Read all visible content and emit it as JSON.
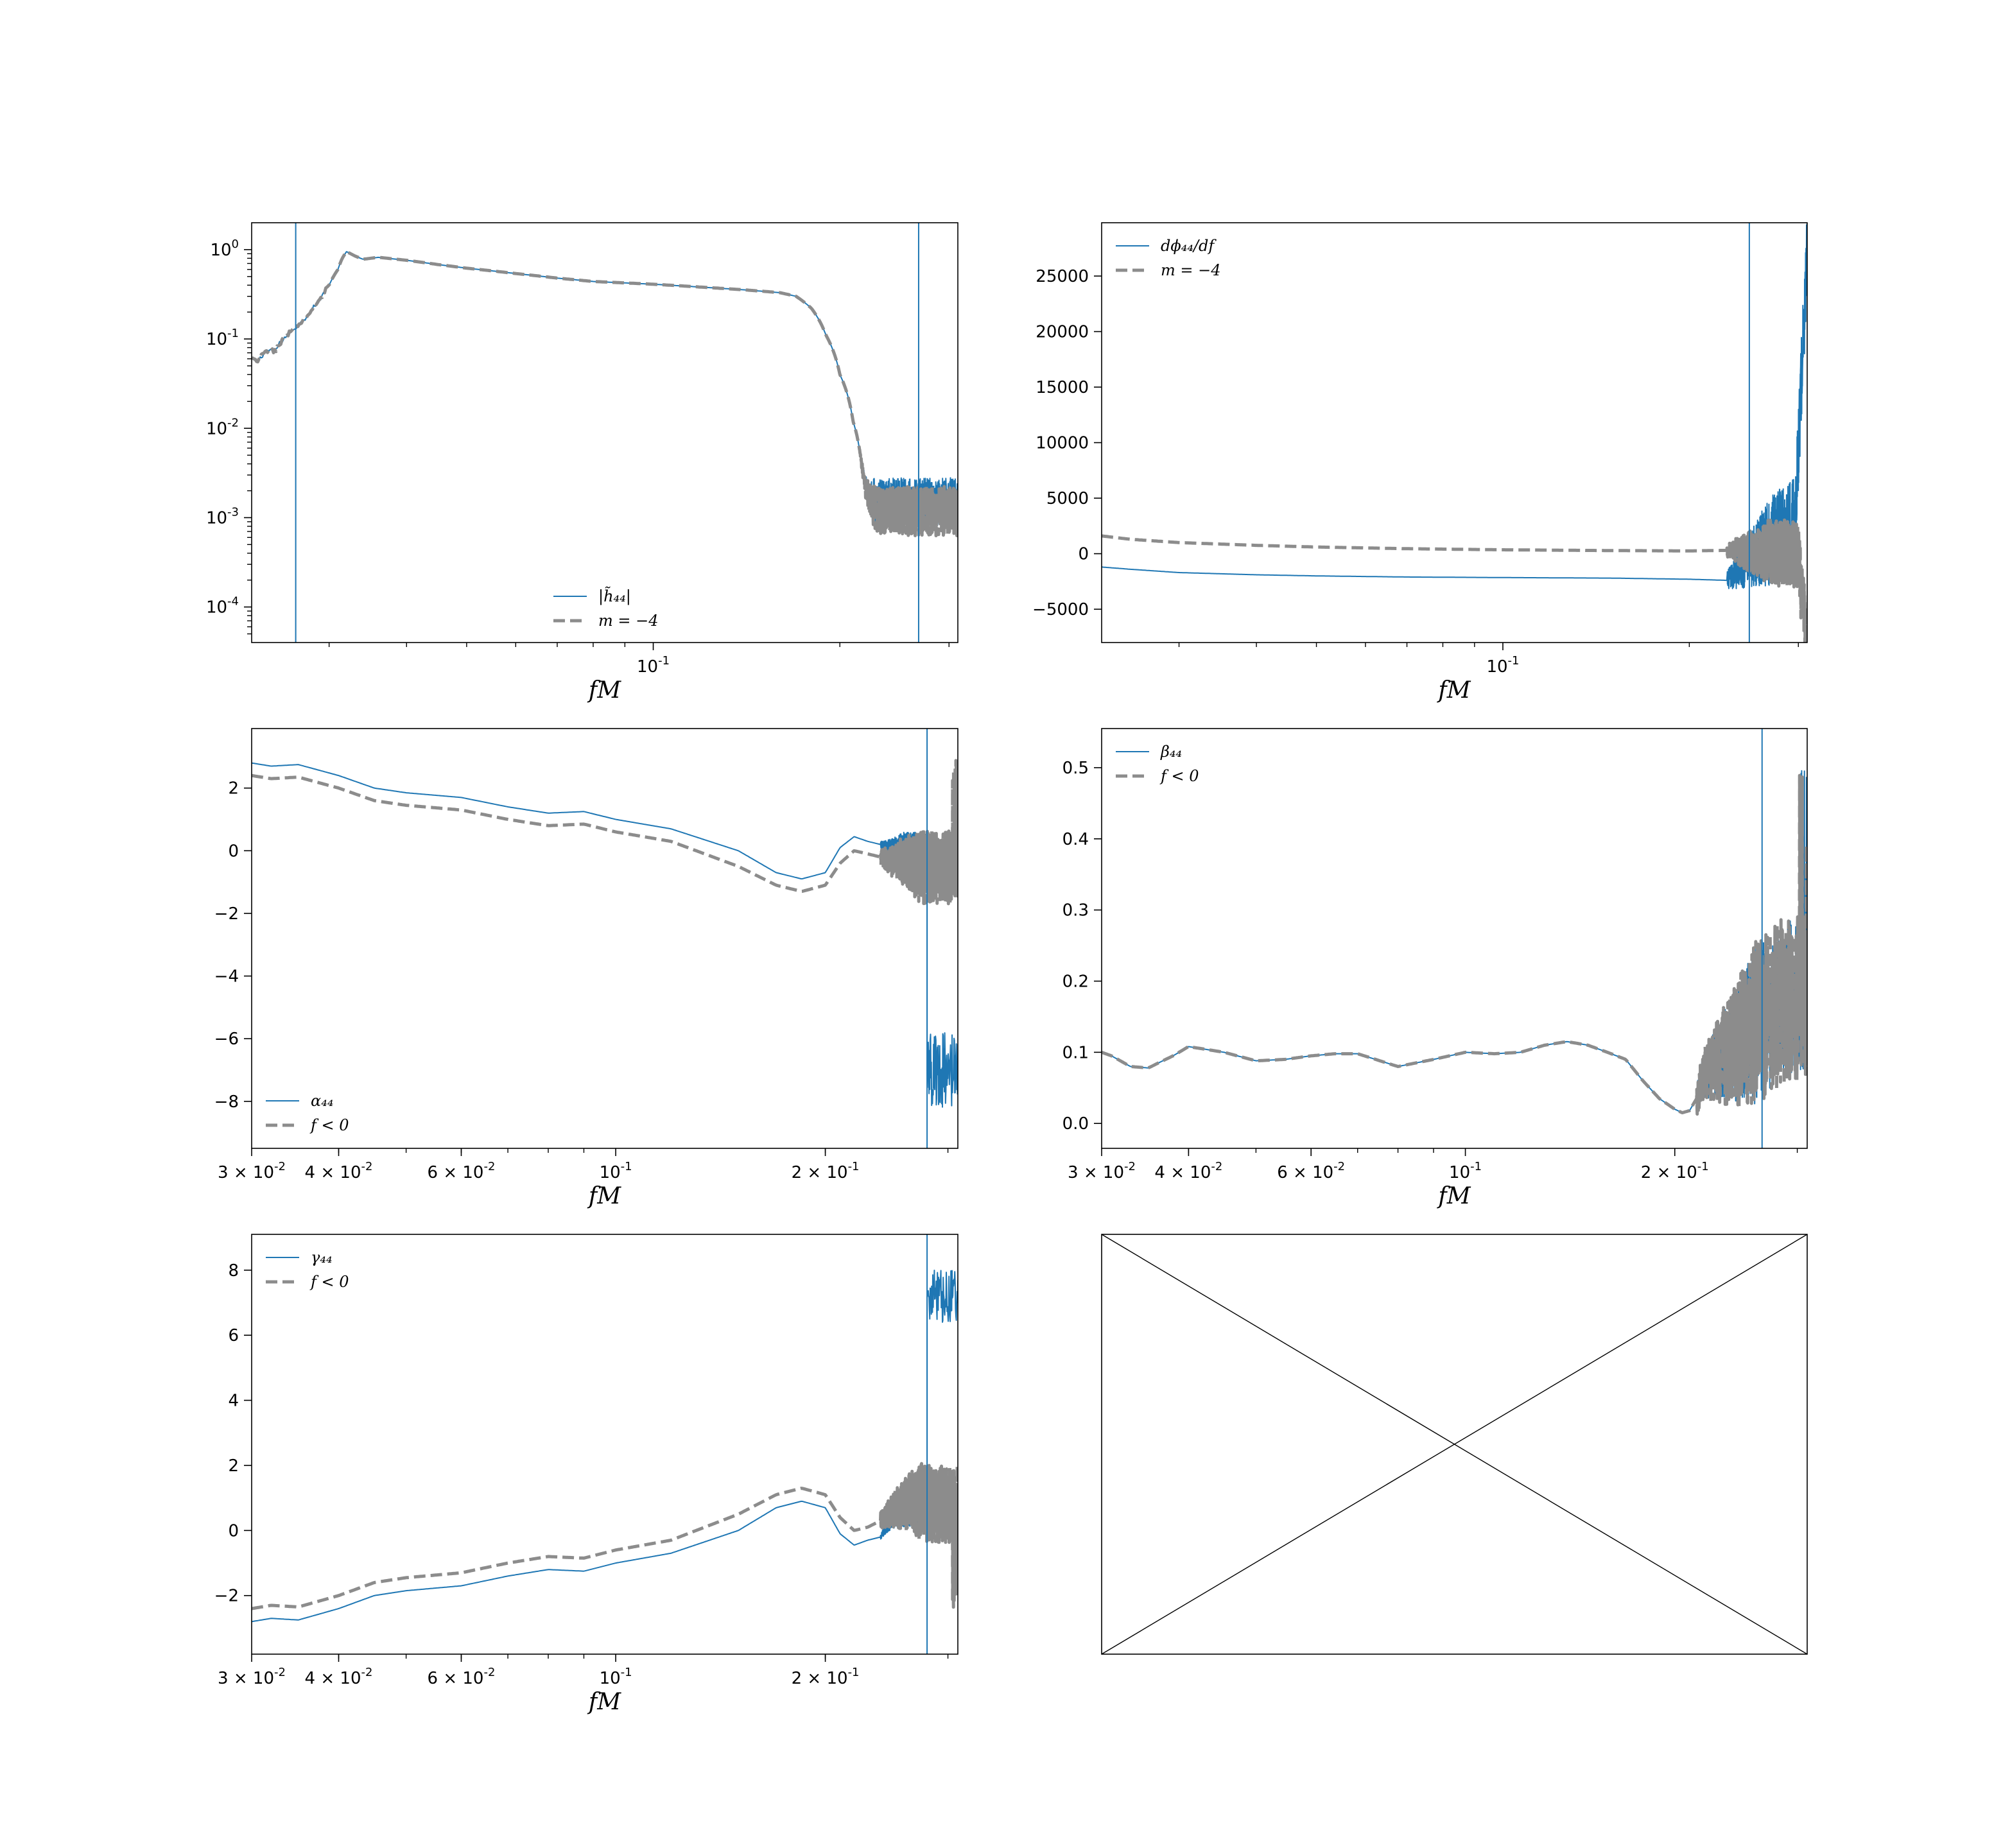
{
  "figure": {
    "colors": {
      "series": "#1f77b4",
      "reference": "#8c8c8c",
      "vline": "#1f77b4",
      "axes": "#000000"
    }
  },
  "chart_data": [
    {
      "id": "amp",
      "type": "line",
      "xscale": "log",
      "yscale": "log",
      "xlim": [
        0.0225,
        0.31
      ],
      "ylim": [
        4e-05,
        2.0
      ],
      "xlabel": "fM",
      "xticks": [
        {
          "value": 0.1,
          "base": "10",
          "exp": "-1"
        }
      ],
      "yticks": [
        {
          "value": 1,
          "base": "10",
          "exp": "0"
        },
        {
          "value": 0.1,
          "base": "10",
          "exp": "-1"
        },
        {
          "value": 0.01,
          "base": "10",
          "exp": "-2"
        },
        {
          "value": 0.001,
          "base": "10",
          "exp": "-3"
        },
        {
          "value": 0.0001,
          "base": "10",
          "exp": "-4"
        }
      ],
      "vlines": [
        0.0265,
        0.268
      ],
      "legend": {
        "position": "lower-center",
        "entries": [
          "|h̃₄₄|",
          "m = −4"
        ]
      },
      "series": [
        {
          "style": "solid",
          "x": [
            0.0225,
            0.023,
            0.0235,
            0.024,
            0.0245,
            0.025,
            0.026,
            0.027,
            0.028,
            0.029,
            0.03,
            0.031,
            0.0315,
            0.032,
            0.033,
            0.034,
            0.036,
            0.04,
            0.045,
            0.05,
            0.06,
            0.07,
            0.08,
            0.1,
            0.12,
            0.14,
            0.16,
            0.17,
            0.18,
            0.19,
            0.2,
            0.21,
            0.215,
            0.22
          ],
          "y": [
            0.06,
            0.055,
            0.068,
            0.075,
            0.072,
            0.09,
            0.12,
            0.15,
            0.2,
            0.28,
            0.4,
            0.6,
            0.8,
            0.95,
            0.85,
            0.78,
            0.82,
            0.76,
            0.68,
            0.62,
            0.54,
            0.48,
            0.44,
            0.41,
            0.38,
            0.355,
            0.33,
            0.3,
            0.22,
            0.11,
            0.04,
            0.012,
            0.006,
            0.003
          ],
          "noise": {
            "x": [
              0.215,
              0.31
            ],
            "y_center": 0.0015,
            "y_spread": 0.0013
          }
        },
        {
          "style": "dashed",
          "x": [
            0.0225,
            0.023,
            0.0235,
            0.024,
            0.0245,
            0.025,
            0.026,
            0.027,
            0.028,
            0.029,
            0.03,
            0.031,
            0.0315,
            0.032,
            0.033,
            0.034,
            0.036,
            0.04,
            0.045,
            0.05,
            0.06,
            0.07,
            0.08,
            0.1,
            0.12,
            0.14,
            0.16,
            0.17,
            0.18,
            0.19,
            0.2,
            0.21,
            0.215,
            0.22
          ],
          "y": [
            0.06,
            0.055,
            0.068,
            0.075,
            0.072,
            0.09,
            0.12,
            0.15,
            0.2,
            0.28,
            0.4,
            0.6,
            0.8,
            0.95,
            0.85,
            0.78,
            0.82,
            0.76,
            0.68,
            0.62,
            0.54,
            0.48,
            0.44,
            0.41,
            0.38,
            0.355,
            0.33,
            0.3,
            0.22,
            0.11,
            0.04,
            0.012,
            0.006,
            0.003
          ],
          "noise": {
            "x": [
              0.215,
              0.31
            ],
            "y_center": 0.0012,
            "y_spread": 0.0011
          }
        }
      ]
    },
    {
      "id": "dphidf",
      "type": "line",
      "xscale": "log",
      "yscale": "linear",
      "xlim": [
        0.0225,
        0.31
      ],
      "ylim": [
        -8000,
        29800
      ],
      "xlabel": "fM",
      "xticks": [
        {
          "value": 0.1,
          "base": "10",
          "exp": "-1"
        }
      ],
      "yticks": [
        {
          "value": -5000,
          "label": "−5000"
        },
        {
          "value": 0,
          "label": "0"
        },
        {
          "value": 5000,
          "label": "5000"
        },
        {
          "value": 10000,
          "label": "10000"
        },
        {
          "value": 15000,
          "label": "15000"
        },
        {
          "value": 20000,
          "label": "20000"
        },
        {
          "value": 25000,
          "label": "25000"
        }
      ],
      "vlines": [
        0.25
      ],
      "legend": {
        "position": "upper-left",
        "entries": [
          "dϕ₄₄/df",
          "m = −4"
        ]
      },
      "series": [
        {
          "style": "solid",
          "x": [
            0.0225,
            0.025,
            0.03,
            0.04,
            0.05,
            0.07,
            0.1,
            0.15,
            0.2,
            0.23
          ],
          "y": [
            -1200,
            -1400,
            -1700,
            -1900,
            -2000,
            -2100,
            -2150,
            -2200,
            -2300,
            -2400
          ],
          "noise": {
            "x": [
              0.23,
              0.31
            ],
            "y_center": 3000,
            "y_spread": 4000,
            "rise_to": 27000
          }
        },
        {
          "style": "dashed",
          "x": [
            0.0225,
            0.025,
            0.03,
            0.04,
            0.05,
            0.07,
            0.1,
            0.15,
            0.2,
            0.23
          ],
          "y": [
            1600,
            1300,
            1000,
            750,
            600,
            450,
            350,
            280,
            250,
            300
          ],
          "noise": {
            "x": [
              0.23,
              0.31
            ],
            "y_center": 0,
            "y_spread": 3000,
            "drop_to": -8000
          }
        }
      ]
    },
    {
      "id": "alpha",
      "type": "line",
      "xscale": "log",
      "yscale": "linear",
      "xlim": [
        0.03,
        0.31
      ],
      "ylim": [
        -9.5,
        3.9
      ],
      "xlabel": "fM",
      "xticks": [
        {
          "value": 0.03,
          "base": "3 × 10",
          "exp": "-2"
        },
        {
          "value": 0.04,
          "base": "4 × 10",
          "exp": "-2"
        },
        {
          "value": 0.06,
          "base": "6 × 10",
          "exp": "-2"
        },
        {
          "value": 0.1,
          "base": "10",
          "exp": "-1"
        },
        {
          "value": 0.2,
          "base": "2 × 10",
          "exp": "-1"
        }
      ],
      "yticks": [
        {
          "value": -8,
          "label": "−8"
        },
        {
          "value": -6,
          "label": "−6"
        },
        {
          "value": -4,
          "label": "−4"
        },
        {
          "value": -2,
          "label": "−2"
        },
        {
          "value": 0,
          "label": "0"
        },
        {
          "value": 2,
          "label": "2"
        }
      ],
      "vlines": [
        0.28
      ],
      "legend": {
        "position": "lower-left",
        "entries": [
          "α₄₄",
          "f < 0"
        ]
      },
      "series": [
        {
          "style": "solid",
          "x": [
            0.03,
            0.032,
            0.035,
            0.04,
            0.045,
            0.05,
            0.06,
            0.07,
            0.08,
            0.09,
            0.1,
            0.12,
            0.15,
            0.17,
            0.185,
            0.2,
            0.21,
            0.22,
            0.23,
            0.24,
            0.25,
            0.26,
            0.27,
            0.28
          ],
          "y": [
            2.8,
            2.7,
            2.75,
            2.4,
            2.0,
            1.85,
            1.7,
            1.4,
            1.2,
            1.25,
            1.0,
            0.7,
            0.0,
            -0.7,
            -0.9,
            -0.7,
            0.1,
            0.45,
            0.3,
            0.2,
            0.1,
            0.15,
            0.0,
            -0.2
          ],
          "noise": {
            "x": [
              0.24,
              0.28
            ],
            "y_center": 0.1,
            "y_spread": 0.5,
            "tail": {
              "x": [
                0.28,
                0.31
              ],
              "y": -7.0,
              "spread": 1.2
            }
          }
        },
        {
          "style": "dashed",
          "x": [
            0.03,
            0.032,
            0.035,
            0.04,
            0.045,
            0.05,
            0.06,
            0.07,
            0.08,
            0.09,
            0.1,
            0.12,
            0.15,
            0.17,
            0.185,
            0.2,
            0.21,
            0.22,
            0.23,
            0.24,
            0.25,
            0.26,
            0.27,
            0.28
          ],
          "y": [
            2.4,
            2.3,
            2.35,
            2.0,
            1.6,
            1.45,
            1.3,
            1.0,
            0.8,
            0.85,
            0.6,
            0.3,
            -0.5,
            -1.1,
            -1.3,
            -1.1,
            -0.4,
            0.0,
            -0.1,
            -0.2,
            -0.3,
            -0.2,
            -0.5,
            -0.6
          ],
          "noise": {
            "x": [
              0.24,
              0.31
            ],
            "y_center": -0.5,
            "y_spread": 1.2,
            "spike": 2.9
          }
        }
      ]
    },
    {
      "id": "beta",
      "type": "line",
      "xscale": "log",
      "yscale": "linear",
      "xlim": [
        0.03,
        0.31
      ],
      "ylim": [
        -0.035,
        0.555
      ],
      "xlabel": "fM",
      "xticks": [
        {
          "value": 0.03,
          "base": "3 × 10",
          "exp": "-2"
        },
        {
          "value": 0.04,
          "base": "4 × 10",
          "exp": "-2"
        },
        {
          "value": 0.06,
          "base": "6 × 10",
          "exp": "-2"
        },
        {
          "value": 0.1,
          "base": "10",
          "exp": "-1"
        },
        {
          "value": 0.2,
          "base": "2 × 10",
          "exp": "-1"
        }
      ],
      "yticks": [
        {
          "value": 0.0,
          "label": "0.0"
        },
        {
          "value": 0.1,
          "label": "0.1"
        },
        {
          "value": 0.2,
          "label": "0.2"
        },
        {
          "value": 0.3,
          "label": "0.3"
        },
        {
          "value": 0.4,
          "label": "0.4"
        },
        {
          "value": 0.5,
          "label": "0.5"
        }
      ],
      "vlines": [
        0.267
      ],
      "legend": {
        "position": "upper-left",
        "entries": [
          "β₄₄",
          "f < 0"
        ]
      },
      "series": [
        {
          "style": "solid",
          "x": [
            0.03,
            0.031,
            0.033,
            0.035,
            0.038,
            0.04,
            0.045,
            0.05,
            0.055,
            0.06,
            0.065,
            0.07,
            0.08,
            0.09,
            0.1,
            0.11,
            0.12,
            0.13,
            0.14,
            0.15,
            0.16,
            0.17,
            0.18,
            0.19,
            0.2,
            0.205,
            0.21,
            0.215,
            0.22
          ],
          "y": [
            0.1,
            0.095,
            0.08,
            0.078,
            0.095,
            0.108,
            0.1,
            0.088,
            0.09,
            0.095,
            0.098,
            0.098,
            0.08,
            0.09,
            0.1,
            0.098,
            0.1,
            0.11,
            0.115,
            0.11,
            0.1,
            0.09,
            0.06,
            0.035,
            0.02,
            0.015,
            0.018,
            0.035,
            0.06
          ],
          "noise": {
            "x": [
              0.215,
              0.31
            ],
            "y_center": 0.18,
            "y_spread": 0.11,
            "spike": 0.5
          }
        },
        {
          "style": "dashed",
          "x": [
            0.03,
            0.031,
            0.033,
            0.035,
            0.038,
            0.04,
            0.045,
            0.05,
            0.055,
            0.06,
            0.065,
            0.07,
            0.08,
            0.09,
            0.1,
            0.11,
            0.12,
            0.13,
            0.14,
            0.15,
            0.16,
            0.17,
            0.18,
            0.19,
            0.2,
            0.205,
            0.21,
            0.215,
            0.22
          ],
          "y": [
            0.1,
            0.095,
            0.08,
            0.078,
            0.095,
            0.108,
            0.1,
            0.088,
            0.09,
            0.095,
            0.098,
            0.098,
            0.08,
            0.09,
            0.1,
            0.098,
            0.1,
            0.11,
            0.115,
            0.11,
            0.1,
            0.09,
            0.06,
            0.035,
            0.02,
            0.015,
            0.018,
            0.035,
            0.06
          ],
          "noise": {
            "x": [
              0.215,
              0.31
            ],
            "y_center": 0.18,
            "y_spread": 0.12,
            "spike": 0.5
          }
        }
      ]
    },
    {
      "id": "gamma",
      "type": "line",
      "xscale": "log",
      "yscale": "linear",
      "xlim": [
        0.03,
        0.31
      ],
      "ylim": [
        -3.8,
        9.1
      ],
      "xlabel": "fM",
      "xticks": [
        {
          "value": 0.03,
          "base": "3 × 10",
          "exp": "-2"
        },
        {
          "value": 0.04,
          "base": "4 × 10",
          "exp": "-2"
        },
        {
          "value": 0.06,
          "base": "6 × 10",
          "exp": "-2"
        },
        {
          "value": 0.1,
          "base": "10",
          "exp": "-1"
        },
        {
          "value": 0.2,
          "base": "2 × 10",
          "exp": "-1"
        }
      ],
      "yticks": [
        {
          "value": -2,
          "label": "−2"
        },
        {
          "value": 0,
          "label": "0"
        },
        {
          "value": 2,
          "label": "2"
        },
        {
          "value": 4,
          "label": "4"
        },
        {
          "value": 6,
          "label": "6"
        },
        {
          "value": 8,
          "label": "8"
        }
      ],
      "vlines": [
        0.28
      ],
      "legend": {
        "position": "upper-left",
        "entries": [
          "γ₄₄",
          "f < 0"
        ]
      },
      "series": [
        {
          "style": "solid",
          "x": [
            0.03,
            0.032,
            0.035,
            0.04,
            0.045,
            0.05,
            0.06,
            0.07,
            0.08,
            0.09,
            0.1,
            0.12,
            0.15,
            0.17,
            0.185,
            0.2,
            0.21,
            0.22,
            0.23,
            0.24,
            0.25,
            0.26,
            0.27,
            0.28
          ],
          "y": [
            -2.8,
            -2.7,
            -2.75,
            -2.4,
            -2.0,
            -1.85,
            -1.7,
            -1.4,
            -1.2,
            -1.25,
            -1.0,
            -0.7,
            0.0,
            0.7,
            0.9,
            0.7,
            -0.1,
            -0.45,
            -0.3,
            -0.2,
            0.2,
            0.5,
            0.8,
            0.9
          ],
          "noise": {
            "x": [
              0.24,
              0.28
            ],
            "y_center": 0.5,
            "y_spread": 0.4,
            "tail": {
              "x": [
                0.28,
                0.31
              ],
              "y": 7.2,
              "spread": 0.8
            }
          }
        },
        {
          "style": "dashed",
          "x": [
            0.03,
            0.032,
            0.035,
            0.04,
            0.045,
            0.05,
            0.06,
            0.07,
            0.08,
            0.09,
            0.1,
            0.12,
            0.15,
            0.17,
            0.185,
            0.2,
            0.21,
            0.22,
            0.23,
            0.24,
            0.25,
            0.26,
            0.27,
            0.28
          ],
          "y": [
            -2.4,
            -2.3,
            -2.35,
            -2.0,
            -1.6,
            -1.45,
            -1.3,
            -1.0,
            -0.8,
            -0.85,
            -0.6,
            -0.3,
            0.5,
            1.1,
            1.3,
            1.1,
            0.4,
            0.0,
            0.1,
            0.3,
            0.6,
            0.8,
            1.0,
            1.0
          ],
          "noise": {
            "x": [
              0.24,
              0.31
            ],
            "y_center": 0.8,
            "y_spread": 1.2,
            "spike": -2.4
          }
        }
      ]
    }
  ]
}
